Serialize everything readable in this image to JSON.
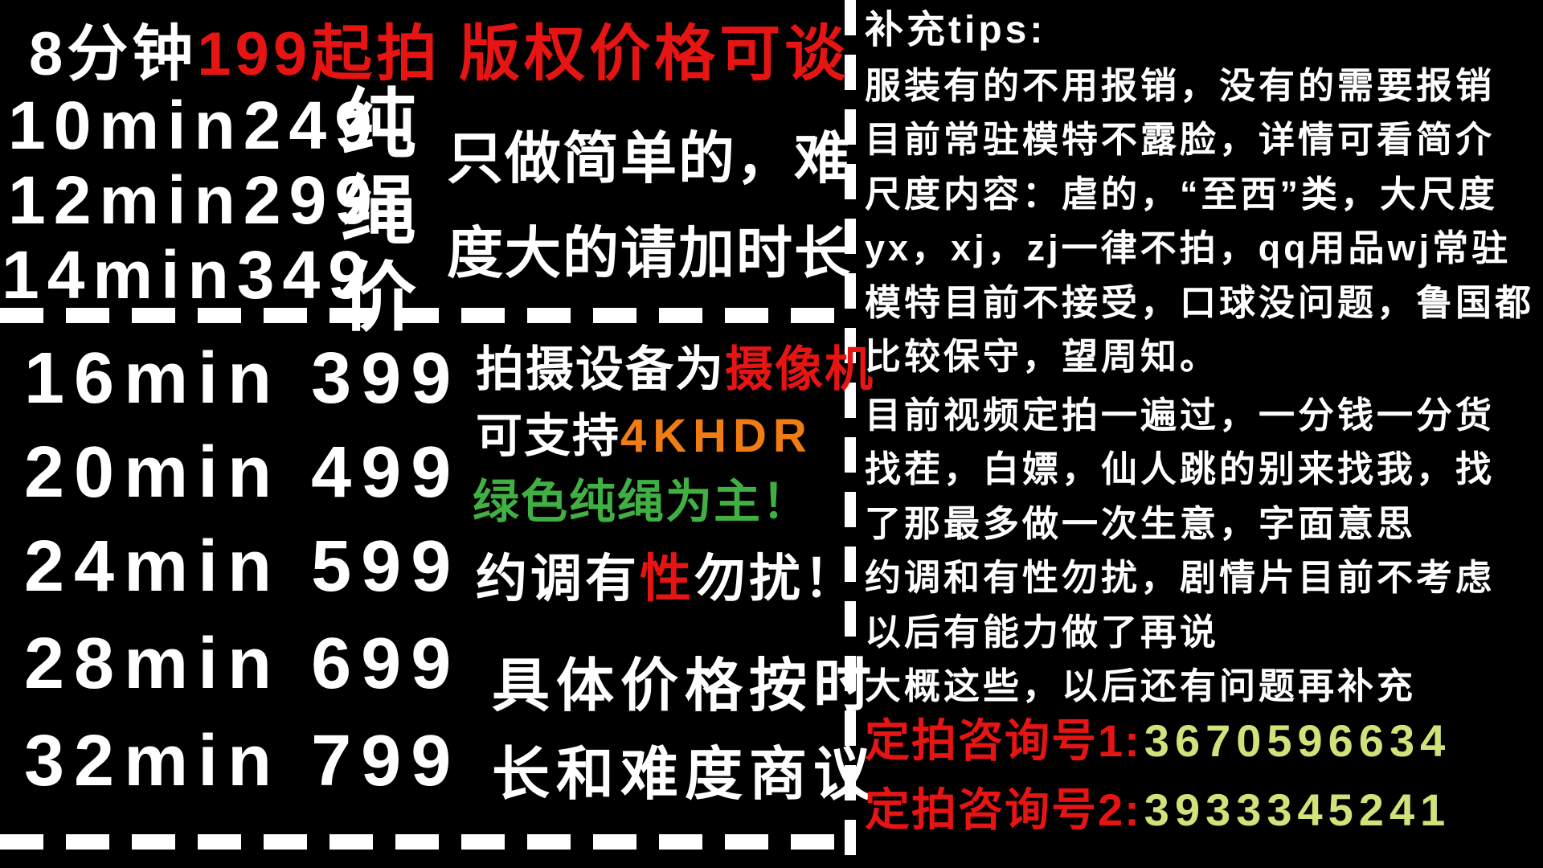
{
  "poster": {
    "top_pricing": {
      "line1": {
        "duration": "8分钟",
        "start_price": "199起拍",
        "copyright": "版权价格可谈"
      },
      "rows": [
        "10min249",
        "12min299",
        "14min349"
      ],
      "vertical_label": "纯绳价",
      "note_line1": "只做简单的，难",
      "note_line2": "度大的请加时长"
    },
    "bottom_pricing": {
      "rows": [
        "16min 399",
        "20min 499",
        "24min 599",
        "28min 699",
        "32min 799"
      ]
    },
    "middle_info": {
      "equipment_prefix": "拍摄设备为",
      "equipment_highlight": "摄像机",
      "support_prefix": "可支持",
      "support_highlight": "4KHDR",
      "green_note": "绿色纯绳为主！",
      "warn_prefix": "约调有",
      "warn_highlight": "性",
      "warn_suffix": "勿扰！",
      "price_note_line1": "具体价格按时",
      "price_note_line2": "长和难度商议"
    },
    "tips": {
      "title": "补充tips:",
      "lines": [
        "服装有的不用报销，没有的需要报销",
        "目前常驻模特不露脸，详情可看简介",
        "尺度内容：虐的，“至西”类，大尺度",
        "yx，xj，zj一律不拍，qq用品wj常驻",
        "模特目前不接受，口球没问题，鲁国都",
        "比较保守，望周知。",
        "目前视频定拍一遍过，一分钱一分货",
        "找茬，白嫖，仙人跳的别来找我，找",
        "了那最多做一次生意，字面意思",
        "约调和有性勿扰，剧情片目前不考虑",
        "以后有能力做了再说",
        "大概这些，以后还有问题再补充"
      ],
      "contacts": [
        {
          "label": "定拍咨询号1:",
          "number": "3670596634"
        },
        {
          "label": "定拍咨询号2:",
          "number": "3933345241"
        }
      ]
    },
    "colors": {
      "background": "#000000",
      "text": "#ffffff",
      "red_accent": "#e71414",
      "orange_accent": "#f07d14",
      "green_accent": "#41b043",
      "lime_accent": "#d2e17a"
    }
  }
}
